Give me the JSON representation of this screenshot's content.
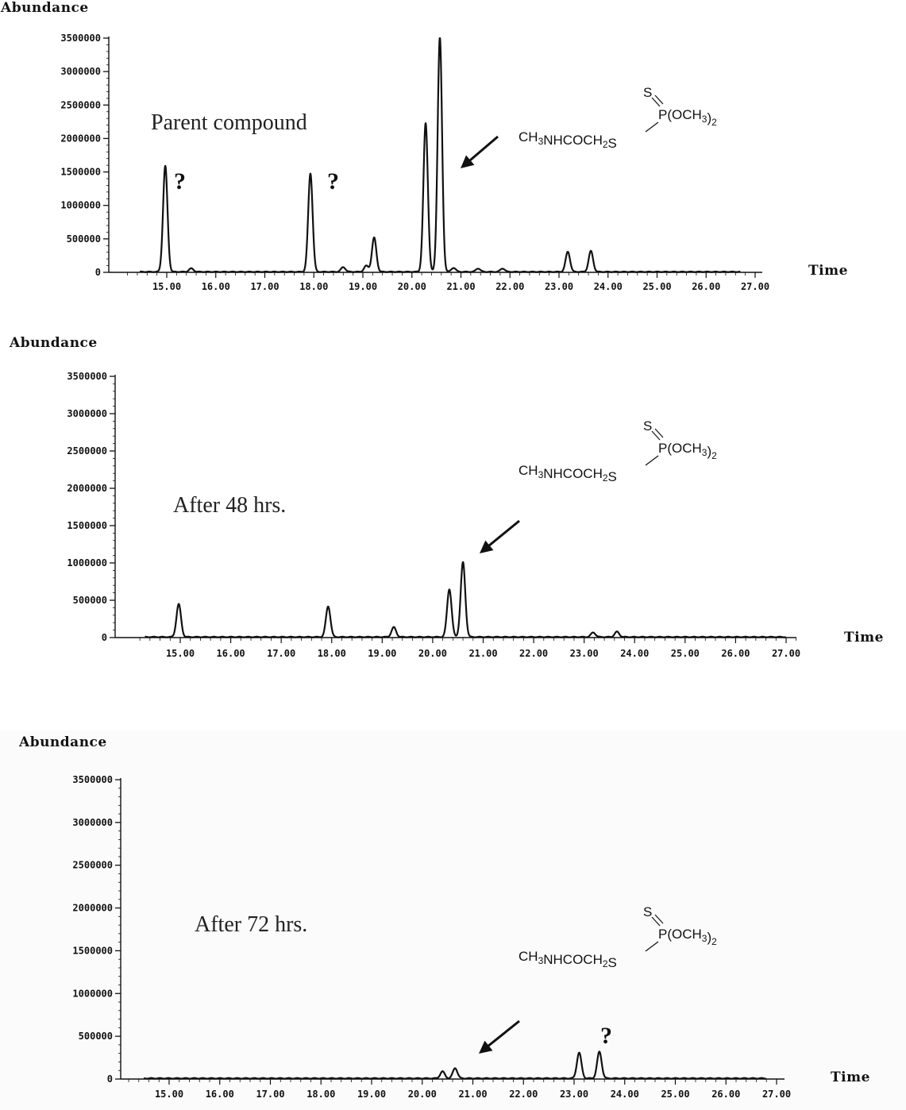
{
  "chart_data": [
    {
      "type": "line",
      "ylabel": "Abundance",
      "xlabel": "Time",
      "ylim": [
        0,
        3500000
      ],
      "xlim": [
        14.2,
        27.3
      ],
      "y_ticks": [
        "3500000",
        "3000000",
        "2500000",
        "2000000",
        "1500000",
        "1000000",
        "500000",
        "0"
      ],
      "y_tick_values": [
        3500000,
        3000000,
        2500000,
        2000000,
        1500000,
        1000000,
        500000,
        0
      ],
      "x_ticks": [
        "15.00",
        "16.00",
        "17.00",
        "18.00",
        "19.00",
        "20.00",
        "21.00",
        "22.00",
        "23.00",
        "24.00",
        "25.00",
        "26.00",
        "27.00"
      ],
      "x_tick_values": [
        15,
        16,
        17,
        18,
        19,
        20,
        21,
        22,
        23,
        24,
        25,
        26,
        27
      ],
      "annotation": "Parent compound",
      "question_marks": [
        {
          "label": "?",
          "x": 15.4,
          "y": 1400000
        },
        {
          "label": "?",
          "x": 18.6,
          "y": 1400000
        }
      ],
      "peaks": [
        {
          "x": 14.97,
          "y": 1580000
        },
        {
          "x": 15.5,
          "y": 50000
        },
        {
          "x": 17.93,
          "y": 1470000
        },
        {
          "x": 18.6,
          "y": 70000
        },
        {
          "x": 19.07,
          "y": 90000
        },
        {
          "x": 19.23,
          "y": 510000
        },
        {
          "x": 20.28,
          "y": 2220000
        },
        {
          "x": 20.57,
          "y": 3500000
        },
        {
          "x": 20.85,
          "y": 60000
        },
        {
          "x": 21.35,
          "y": 50000
        },
        {
          "x": 21.85,
          "y": 50000
        },
        {
          "x": 23.18,
          "y": 300000
        },
        {
          "x": 23.65,
          "y": 310000
        }
      ],
      "arrow_target": {
        "x": 20.85,
        "y": 1550000
      }
    },
    {
      "type": "line",
      "ylabel": "Abundance",
      "xlabel": "Time",
      "ylim": [
        0,
        3500000
      ],
      "xlim": [
        14.2,
        27.3
      ],
      "y_ticks": [
        "3500000",
        "3000000",
        "2500000",
        "2000000",
        "1500000",
        "1000000",
        "500000",
        "0"
      ],
      "y_tick_values": [
        3500000,
        3000000,
        2500000,
        2000000,
        1500000,
        1000000,
        500000,
        0
      ],
      "x_ticks": [
        "15.00",
        "16.00",
        "17.00",
        "18.00",
        "19.00",
        "20.00",
        "21.00",
        "22.00",
        "23.00",
        "24.00",
        "25.00",
        "26.00",
        "27.00"
      ],
      "x_tick_values": [
        15,
        16,
        17,
        18,
        19,
        20,
        21,
        22,
        23,
        24,
        25,
        26,
        27
      ],
      "annotation": "After 48 hrs.",
      "question_marks": [],
      "peaks": [
        {
          "x": 14.97,
          "y": 440000
        },
        {
          "x": 17.93,
          "y": 410000
        },
        {
          "x": 19.23,
          "y": 130000
        },
        {
          "x": 20.33,
          "y": 640000
        },
        {
          "x": 20.6,
          "y": 1000000
        },
        {
          "x": 23.18,
          "y": 60000
        },
        {
          "x": 23.65,
          "y": 70000
        }
      ],
      "arrow_target": {
        "x": 20.95,
        "y": 1150000
      }
    },
    {
      "type": "line",
      "ylabel": "Abundance",
      "xlabel": "Time",
      "ylim": [
        0,
        3500000
      ],
      "xlim": [
        14.2,
        27.3
      ],
      "y_ticks": [
        "3500000",
        "3000000",
        "2500000",
        "2000000",
        "1500000",
        "1000000",
        "500000",
        "0"
      ],
      "y_tick_values": [
        3500000,
        3000000,
        2500000,
        2000000,
        1500000,
        1000000,
        500000,
        0
      ],
      "x_ticks": [
        "15.00",
        "16.00",
        "17.00",
        "18.00",
        "19.00",
        "20.00",
        "21.00",
        "22.00",
        "23.00",
        "24.00",
        "25.00",
        "26.00",
        "27.00"
      ],
      "x_tick_values": [
        15,
        16,
        17,
        18,
        19,
        20,
        21,
        22,
        23,
        24,
        25,
        26,
        27
      ],
      "annotation": "After 72 hrs.",
      "question_marks": [
        {
          "label": "?",
          "x": 23.5,
          "y": 480000
        }
      ],
      "peaks": [
        {
          "x": 20.4,
          "y": 80000
        },
        {
          "x": 20.65,
          "y": 120000
        },
        {
          "x": 23.1,
          "y": 300000
        },
        {
          "x": 23.5,
          "y": 310000
        }
      ],
      "arrow_target": {
        "x": 21.0,
        "y": 300000
      }
    }
  ],
  "structure": {
    "s_label": "S",
    "p_group": "P(OCH",
    "p_sub": "3",
    "p_close": ")",
    "p_sub2": "2",
    "chain_a": "CH",
    "chain_sub1": "3",
    "chain_b": "NHCOCH",
    "chain_sub2": "2",
    "chain_c": "S"
  }
}
